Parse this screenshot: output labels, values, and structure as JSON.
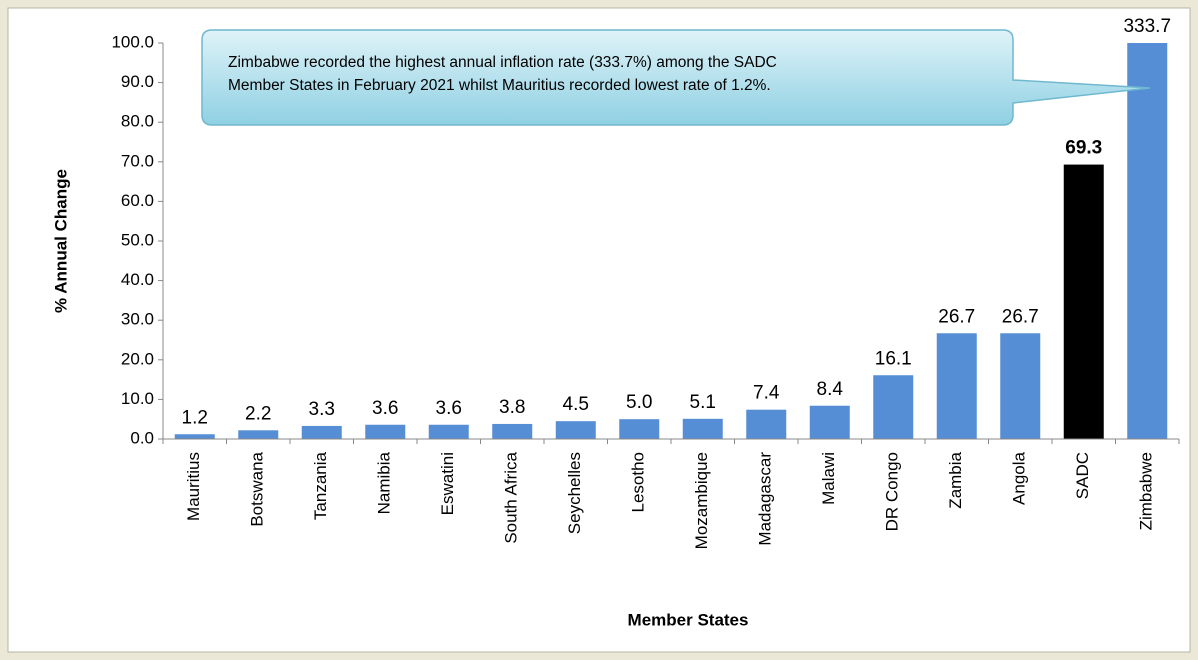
{
  "chart_data": {
    "type": "bar",
    "categories": [
      "Mauritius",
      "Botswana",
      "Tanzania",
      "Namibia",
      "Eswatini",
      "South Africa",
      "Seychelles",
      "Lesotho",
      "Mozambique",
      "Madagascar",
      "Malawi",
      "DR Congo",
      "Zambia",
      "Angola",
      "SADC",
      "Zimbabwe"
    ],
    "values": [
      1.2,
      2.2,
      3.3,
      3.6,
      3.6,
      3.8,
      4.5,
      5.0,
      5.1,
      7.4,
      8.4,
      16.1,
      26.7,
      26.7,
      69.3,
      333.7
    ],
    "value_labels": [
      "1.2",
      "2.2",
      "3.3",
      "3.6",
      "3.6",
      "3.8",
      "4.5",
      "5.0",
      "5.1",
      "7.4",
      "8.4",
      "16.1",
      "26.7",
      "26.7",
      "69.3",
      "333.7"
    ],
    "colors": [
      "#558ed5",
      "#558ed5",
      "#558ed5",
      "#558ed5",
      "#558ed5",
      "#558ed5",
      "#558ed5",
      "#558ed5",
      "#558ed5",
      "#558ed5",
      "#558ed5",
      "#558ed5",
      "#558ed5",
      "#558ed5",
      "#000000",
      "#558ed5"
    ],
    "ylim": [
      0,
      100
    ],
    "yticks": [
      {
        "value": 0,
        "label": "0.0"
      },
      {
        "value": 10,
        "label": "10.0"
      },
      {
        "value": 20,
        "label": "20.0"
      },
      {
        "value": 30,
        "label": "30.0"
      },
      {
        "value": 40,
        "label": "40.0"
      },
      {
        "value": 50,
        "label": "50.0"
      },
      {
        "value": 60,
        "label": "60.0"
      },
      {
        "value": 70,
        "label": "70.0"
      },
      {
        "value": 80,
        "label": "80.0"
      },
      {
        "value": 90,
        "label": "90.0"
      },
      {
        "value": 100,
        "label": "100.0"
      }
    ],
    "ylabel": "% Annual Change",
    "xlabel": "Member States",
    "annotation": [
      "Zimbabwe recorded the highest annual inflation rate (333.7%) among the SADC",
      "Member States in February 2021 whilst Mauritius recorded lowest rate of 1.2%."
    ],
    "grid": false
  }
}
